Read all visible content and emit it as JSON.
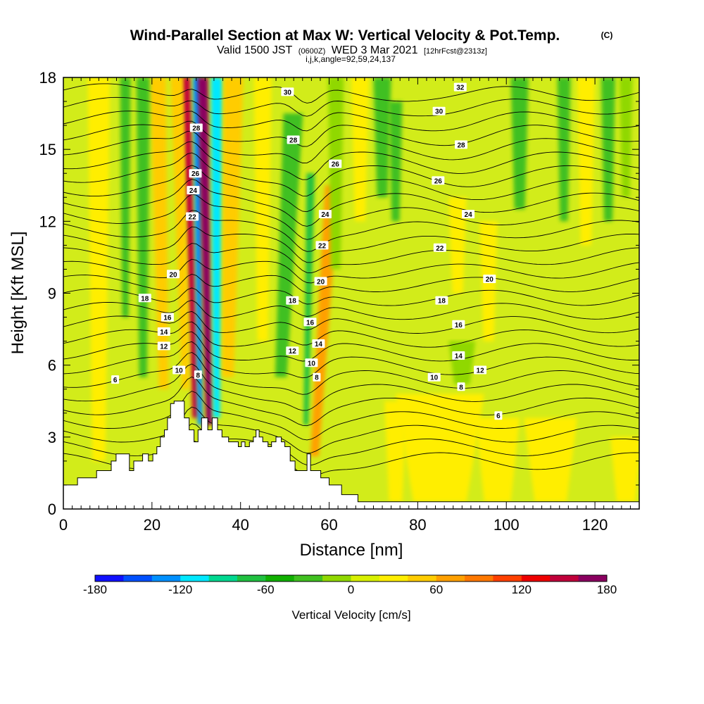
{
  "title": {
    "main": "Wind-Parallel Section at Max W: Vertical Velocity & Pot.Temp.",
    "marker": "(C)",
    "valid_prefix": "Valid 1500 JST",
    "valid_zulu": "(0600Z)",
    "valid_date": "WED 3 Mar 2021",
    "forecast": "[12hrFcst@2313z]",
    "params": "i,j,k,angle=92,59,24,137"
  },
  "chart_data": {
    "type": "heatmap",
    "xlabel": "Distance [nm]",
    "ylabel": "Height [Kft MSL]",
    "xlim": [
      0,
      130
    ],
    "ylim": [
      0,
      18
    ],
    "x_ticks": [
      0,
      20,
      40,
      60,
      80,
      100,
      120
    ],
    "x_minor_step": 2,
    "y_ticks": [
      0,
      3,
      6,
      9,
      12,
      15,
      18
    ],
    "y_minor_step": 1,
    "fill_variable": "Vertical Velocity [cm/s]",
    "colorbar": {
      "label": "Vertical Velocity [cm/s]",
      "ticks": [
        -180,
        -120,
        -60,
        0,
        60,
        120,
        180
      ],
      "levels": [
        -180,
        -160,
        -140,
        -120,
        -100,
        -80,
        -60,
        -40,
        -20,
        0,
        20,
        40,
        60,
        80,
        100,
        120,
        140,
        160,
        180
      ],
      "colors": [
        "#1010ff",
        "#0050ff",
        "#0090ff",
        "#00e8ff",
        "#00d890",
        "#20c040",
        "#10b000",
        "#40c020",
        "#90d800",
        "#d8f000",
        "#ffee00",
        "#ffcc00",
        "#ffa000",
        "#ff7800",
        "#ff4000",
        "#ee0000",
        "#c0003a",
        "#8a0060",
        "#4b0082"
      ]
    },
    "background_level": "#d2ec1a",
    "velocity_features": [
      {
        "x": 28.7,
        "top": 18,
        "bottom": 3.8,
        "width": 1.0,
        "value": 150,
        "slope": -0.15
      },
      {
        "x": 26.6,
        "top": 18,
        "bottom": 5.0,
        "width": 1.4,
        "value": 45,
        "slope": -0.15
      },
      {
        "x": 30.5,
        "top": 18,
        "bottom": 3.5,
        "width": 0.9,
        "value": -130,
        "slope": -0.05
      },
      {
        "x": 32.2,
        "top": 18,
        "bottom": 3.5,
        "width": 1.2,
        "value": 160,
        "slope": -0.1
      },
      {
        "x": 34.6,
        "top": 18,
        "bottom": 3.8,
        "width": 1.3,
        "value": -110,
        "slope": 0.0
      },
      {
        "x": 37.8,
        "top": 18,
        "bottom": 5.5,
        "width": 2.2,
        "value": 40,
        "slope": 0.1
      },
      {
        "x": 22.0,
        "top": 18,
        "bottom": 5.0,
        "width": 1.8,
        "value": 35,
        "slope": -0.1
      },
      {
        "x": 18.0,
        "top": 18,
        "bottom": 5.5,
        "width": 1.5,
        "value": -35,
        "slope": 0.0
      },
      {
        "x": 14.0,
        "top": 18,
        "bottom": 8.0,
        "width": 1.2,
        "value": -30,
        "slope": 0.0
      },
      {
        "x": 8.0,
        "top": 18,
        "bottom": 2.0,
        "width": 2.5,
        "value": 25,
        "slope": 0.0
      },
      {
        "x": 50.5,
        "top": 16.5,
        "bottom": 5.5,
        "width": 2.2,
        "value": -40,
        "slope": 0.25
      },
      {
        "x": 55.3,
        "top": 14.0,
        "bottom": 3.5,
        "width": 0.9,
        "value": -85,
        "slope": 0.1
      },
      {
        "x": 58.7,
        "top": 13.5,
        "bottom": 2.2,
        "width": 1.6,
        "value": 60,
        "slope": 0.35
      },
      {
        "x": 61.5,
        "top": 18,
        "bottom": 10.0,
        "width": 1.8,
        "value": -20,
        "slope": 0.0
      },
      {
        "x": 45.0,
        "top": 18,
        "bottom": 7.0,
        "width": 2.0,
        "value": 30,
        "slope": 0.0
      },
      {
        "x": 72.0,
        "top": 18,
        "bottom": 13.0,
        "width": 2.0,
        "value": -45,
        "slope": 0.0
      },
      {
        "x": 75.0,
        "top": 17,
        "bottom": 12.0,
        "width": 1.5,
        "value": -30,
        "slope": 0.0
      },
      {
        "x": 67.0,
        "top": 18,
        "bottom": 12.0,
        "width": 2.0,
        "value": 25,
        "slope": 0.0
      },
      {
        "x": 89.0,
        "top": 13.0,
        "bottom": 9.0,
        "width": 2.0,
        "value": 25,
        "slope": 0.0
      },
      {
        "x": 96.0,
        "top": 12.0,
        "bottom": 7.0,
        "width": 2.0,
        "value": 30,
        "slope": 0.0
      },
      {
        "x": 103.0,
        "top": 18,
        "bottom": 12.5,
        "width": 2.0,
        "value": -30,
        "slope": 0.0
      },
      {
        "x": 113.0,
        "top": 18,
        "bottom": 12.0,
        "width": 1.5,
        "value": -30,
        "slope": 0.0
      },
      {
        "x": 118.0,
        "top": 18,
        "bottom": 11.0,
        "width": 2.0,
        "value": 25,
        "slope": 0.0
      },
      {
        "x": 123.0,
        "top": 18,
        "bottom": 12.0,
        "width": 1.6,
        "value": -35,
        "slope": 0.0
      },
      {
        "x": 127.0,
        "top": 18,
        "bottom": 13.0,
        "width": 1.5,
        "value": -20,
        "slope": 0.0
      },
      {
        "x": 85.0,
        "top": 4.8,
        "bottom": 0.3,
        "width": 10.0,
        "value": 25,
        "slope": 0.0
      },
      {
        "x": 98.0,
        "top": 3.8,
        "bottom": 0.3,
        "width": 5.0,
        "value": 25,
        "slope": 0.0
      },
      {
        "x": 110.0,
        "top": 3.8,
        "bottom": 0.3,
        "width": 6.0,
        "value": 25,
        "slope": 0.0
      },
      {
        "x": 127.0,
        "top": 3.0,
        "bottom": 0.3,
        "width": 3.5,
        "value": 25,
        "slope": 0.0
      },
      {
        "x": 75.0,
        "top": 4.5,
        "bottom": 0.3,
        "width": 2.5,
        "value": 25,
        "slope": 0.0
      },
      {
        "x": 90.0,
        "top": 7.0,
        "bottom": 5.2,
        "width": 3.0,
        "value": -20,
        "slope": 0.0
      }
    ],
    "terrain": [
      [
        0,
        1.0
      ],
      [
        3.2,
        1.0
      ],
      [
        3.2,
        1.3
      ],
      [
        7.5,
        1.3
      ],
      [
        7.5,
        1.6
      ],
      [
        10.8,
        1.6
      ],
      [
        10.8,
        2.0
      ],
      [
        11.9,
        2.0
      ],
      [
        11.9,
        2.3
      ],
      [
        14.9,
        2.3
      ],
      [
        14.9,
        1.6
      ],
      [
        15.9,
        1.6
      ],
      [
        15.9,
        2.0
      ],
      [
        17.9,
        2.0
      ],
      [
        17.9,
        2.3
      ],
      [
        19.2,
        2.3
      ],
      [
        19.2,
        2.0
      ],
      [
        20.2,
        2.0
      ],
      [
        20.2,
        2.3
      ],
      [
        21.1,
        2.3
      ],
      [
        21.1,
        2.6
      ],
      [
        21.9,
        2.6
      ],
      [
        21.9,
        3.0
      ],
      [
        22.8,
        3.0
      ],
      [
        22.8,
        3.3
      ],
      [
        23.5,
        3.3
      ],
      [
        23.5,
        3.8
      ],
      [
        24.2,
        3.8
      ],
      [
        24.2,
        4.4
      ],
      [
        25.0,
        4.4
      ],
      [
        25.0,
        4.5
      ],
      [
        27.3,
        4.5
      ],
      [
        27.3,
        3.8
      ],
      [
        28.4,
        3.8
      ],
      [
        28.4,
        3.3
      ],
      [
        29.5,
        3.3
      ],
      [
        29.5,
        2.8
      ],
      [
        30.4,
        2.8
      ],
      [
        30.4,
        3.3
      ],
      [
        31.2,
        3.3
      ],
      [
        31.2,
        3.8
      ],
      [
        32.6,
        3.8
      ],
      [
        32.6,
        3.3
      ],
      [
        33.6,
        3.3
      ],
      [
        33.6,
        3.8
      ],
      [
        34.8,
        3.8
      ],
      [
        34.8,
        3.3
      ],
      [
        35.8,
        3.3
      ],
      [
        35.8,
        3.0
      ],
      [
        37.3,
        3.0
      ],
      [
        37.3,
        2.8
      ],
      [
        39.5,
        2.8
      ],
      [
        39.5,
        2.6
      ],
      [
        40.2,
        2.6
      ],
      [
        40.2,
        2.8
      ],
      [
        41.0,
        2.8
      ],
      [
        41.0,
        2.6
      ],
      [
        42.0,
        2.6
      ],
      [
        42.0,
        2.8
      ],
      [
        42.9,
        2.8
      ],
      [
        42.9,
        3.0
      ],
      [
        43.5,
        3.0
      ],
      [
        43.5,
        3.3
      ],
      [
        44.2,
        3.3
      ],
      [
        44.2,
        3.0
      ],
      [
        45.0,
        3.0
      ],
      [
        45.0,
        2.8
      ],
      [
        46.2,
        2.8
      ],
      [
        46.2,
        2.6
      ],
      [
        47.0,
        2.6
      ],
      [
        47.0,
        2.8
      ],
      [
        48.0,
        2.8
      ],
      [
        48.0,
        3.0
      ],
      [
        49.2,
        3.0
      ],
      [
        49.2,
        2.8
      ],
      [
        50.0,
        2.8
      ],
      [
        50.0,
        2.6
      ],
      [
        51.2,
        2.6
      ],
      [
        51.2,
        2.0
      ],
      [
        52.3,
        2.0
      ],
      [
        52.3,
        1.6
      ],
      [
        55.0,
        1.6
      ],
      [
        55.0,
        2.3
      ],
      [
        55.8,
        2.3
      ],
      [
        55.8,
        1.6
      ],
      [
        58.1,
        1.6
      ],
      [
        58.1,
        1.3
      ],
      [
        60.0,
        1.3
      ],
      [
        60.0,
        1.0
      ],
      [
        62.8,
        1.0
      ],
      [
        62.8,
        0.6
      ],
      [
        66.5,
        0.6
      ],
      [
        66.5,
        0.3
      ],
      [
        130,
        0.3
      ],
      [
        130,
        0
      ],
      [
        0,
        0
      ]
    ],
    "theta_contours": {
      "levels_K": [
        5,
        6,
        7,
        8,
        9,
        10,
        11,
        12,
        13,
        14,
        15,
        16,
        17,
        18,
        19,
        20,
        21,
        22,
        23,
        24,
        25,
        26,
        27,
        28,
        29,
        30,
        31,
        32
      ],
      "labels": [
        {
          "text": "6",
          "x": 11.7,
          "y": 5.4
        },
        {
          "text": "6",
          "x": 98.2,
          "y": 3.9
        },
        {
          "text": "8",
          "x": 57.2,
          "y": 5.5
        },
        {
          "text": "8",
          "x": 89.8,
          "y": 5.1
        },
        {
          "text": "8",
          "x": 30.4,
          "y": 5.6
        },
        {
          "text": "10",
          "x": 26.1,
          "y": 5.8
        },
        {
          "text": "10",
          "x": 56.0,
          "y": 6.1
        },
        {
          "text": "10",
          "x": 83.7,
          "y": 5.5
        },
        {
          "text": "12",
          "x": 22.7,
          "y": 6.8
        },
        {
          "text": "12",
          "x": 51.7,
          "y": 6.6
        },
        {
          "text": "12",
          "x": 94.1,
          "y": 5.8
        },
        {
          "text": "14",
          "x": 22.7,
          "y": 7.4
        },
        {
          "text": "14",
          "x": 57.6,
          "y": 6.9
        },
        {
          "text": "14",
          "x": 89.2,
          "y": 6.4
        },
        {
          "text": "16",
          "x": 23.5,
          "y": 8.0
        },
        {
          "text": "16",
          "x": 55.7,
          "y": 7.8
        },
        {
          "text": "16",
          "x": 89.2,
          "y": 7.7
        },
        {
          "text": "18",
          "x": 18.4,
          "y": 8.8
        },
        {
          "text": "18",
          "x": 51.7,
          "y": 8.7
        },
        {
          "text": "18",
          "x": 85.4,
          "y": 8.7
        },
        {
          "text": "20",
          "x": 24.8,
          "y": 9.8
        },
        {
          "text": "20",
          "x": 58.1,
          "y": 9.5
        },
        {
          "text": "20",
          "x": 96.2,
          "y": 9.6
        },
        {
          "text": "22",
          "x": 29.1,
          "y": 12.2
        },
        {
          "text": "22",
          "x": 58.4,
          "y": 11.0
        },
        {
          "text": "22",
          "x": 85.0,
          "y": 10.9
        },
        {
          "text": "24",
          "x": 29.3,
          "y": 13.3
        },
        {
          "text": "24",
          "x": 59.1,
          "y": 12.3
        },
        {
          "text": "24",
          "x": 91.4,
          "y": 12.3
        },
        {
          "text": "26",
          "x": 29.8,
          "y": 14.0
        },
        {
          "text": "26",
          "x": 61.4,
          "y": 14.4
        },
        {
          "text": "26",
          "x": 84.6,
          "y": 13.7
        },
        {
          "text": "28",
          "x": 30.0,
          "y": 15.9
        },
        {
          "text": "28",
          "x": 51.9,
          "y": 15.4
        },
        {
          "text": "28",
          "x": 89.8,
          "y": 15.2
        },
        {
          "text": "30",
          "x": 50.6,
          "y": 17.4
        },
        {
          "text": "30",
          "x": 84.8,
          "y": 16.6
        },
        {
          "text": "32",
          "x": 89.6,
          "y": 17.6
        }
      ]
    }
  }
}
